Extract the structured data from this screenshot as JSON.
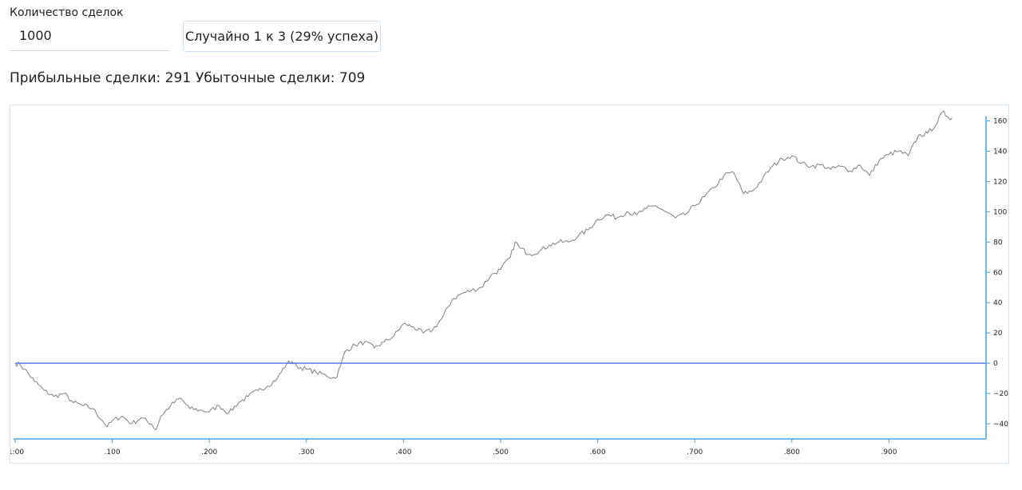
{
  "form": {
    "count_label": "Количество сделок",
    "count_value": "1000",
    "random_button_label": "Случайно 1 к 3 (29% успеха)"
  },
  "stats": {
    "profitable": "Прибыльные сделки: 291",
    "losing": "Убыточные сделки: 709"
  },
  "colors": {
    "line": "#8a8a8a",
    "zero_line": "#5b7fe0",
    "axis": "#4a9fe0",
    "tick_text": "#222222"
  },
  "chart_data": {
    "type": "line",
    "title": "",
    "xlabel": "",
    "ylabel": "",
    "xlim": [
      0,
      1000
    ],
    "ylim": [
      -50,
      165
    ],
    "x_tick_values": [
      0,
      100,
      200,
      300,
      400,
      500,
      600,
      700,
      800,
      900
    ],
    "x_tick_labels": [
      "1:00",
      ".100",
      ".200",
      ".300",
      ".400",
      ".500",
      ".600",
      ".700",
      ".800",
      ".900"
    ],
    "y_tick_values": [
      160,
      140,
      120,
      100,
      80,
      60,
      40,
      20,
      0,
      -20,
      -40
    ],
    "y_tick_labels": [
      "160",
      "140",
      "120",
      "100",
      "80",
      "60",
      "40",
      "20",
      "0",
      "−20",
      "−40"
    ],
    "y_axis_position": "right",
    "grid": false,
    "reference_lines": [
      {
        "y": 0
      }
    ],
    "series": [
      {
        "x": [
          0,
          5,
          10,
          20,
          30,
          40,
          50,
          60,
          70,
          80,
          90,
          95,
          100,
          110,
          120,
          130,
          140,
          145,
          150,
          160,
          170,
          180,
          190,
          200,
          210,
          220,
          230,
          240,
          250,
          260,
          270,
          280,
          285,
          290,
          300,
          310,
          320,
          330,
          335,
          340,
          350,
          360,
          370,
          380,
          390,
          400,
          410,
          420,
          430,
          440,
          450,
          460,
          470,
          480,
          490,
          500,
          510,
          515,
          520,
          530,
          540,
          550,
          560,
          570,
          580,
          590,
          600,
          610,
          620,
          630,
          640,
          650,
          660,
          670,
          680,
          690,
          700,
          710,
          720,
          730,
          740,
          750,
          760,
          770,
          780,
          790,
          800,
          810,
          820,
          830,
          840,
          850,
          860,
          870,
          880,
          890,
          900,
          910,
          920,
          930,
          940,
          950,
          955,
          960,
          965
        ],
        "values": [
          0,
          -1,
          -4,
          -12,
          -18,
          -22,
          -20,
          -26,
          -28,
          -30,
          -38,
          -42,
          -38,
          -35,
          -40,
          -36,
          -40,
          -44,
          -35,
          -28,
          -23,
          -30,
          -31,
          -32,
          -28,
          -33,
          -26,
          -22,
          -18,
          -15,
          -10,
          0,
          1,
          -2,
          -4,
          -6,
          -8,
          -10,
          -2,
          8,
          12,
          14,
          10,
          14,
          18,
          26,
          24,
          20,
          22,
          30,
          42,
          46,
          48,
          50,
          58,
          62,
          70,
          80,
          76,
          72,
          74,
          78,
          80,
          80,
          84,
          88,
          95,
          98,
          96,
          100,
          98,
          102,
          104,
          100,
          96,
          98,
          104,
          110,
          116,
          124,
          126,
          112,
          114,
          122,
          130,
          135,
          137,
          132,
          130,
          131,
          128,
          130,
          127,
          131,
          124,
          134,
          138,
          140,
          137,
          150,
          152,
          159,
          166,
          163,
          162
        ]
      }
    ]
  }
}
